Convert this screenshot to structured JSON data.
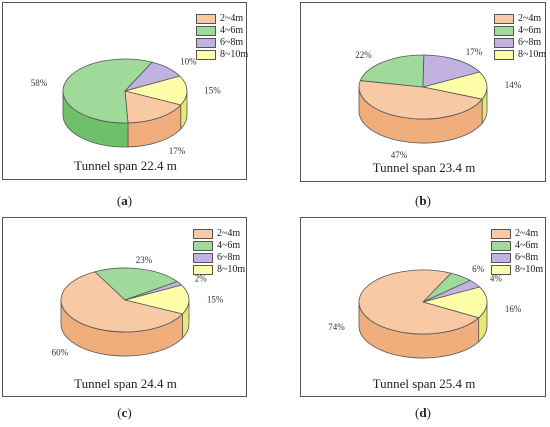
{
  "legend_labels": [
    "2~4m",
    "4~6m",
    "6~8m",
    "8~10m"
  ],
  "colors": {
    "top": [
      "#f7c9a4",
      "#9fda9a",
      "#c1b2e2",
      "#fefea8"
    ],
    "side": [
      "#efae7c",
      "#6fc06a",
      "#9c87cc",
      "#e9e971"
    ],
    "stroke": "#555555"
  },
  "chart_data": [
    {
      "type": "pie",
      "title": "Tunnel span 22.4 m",
      "panel_label": "a",
      "categories": [
        "2~4m",
        "4~6m",
        "6~8m",
        "8~10m"
      ],
      "values": [
        17,
        58,
        10,
        15
      ],
      "labels": [
        "17%",
        "58%",
        "10%",
        "15%"
      ]
    },
    {
      "type": "pie",
      "title": "Tunnel span 23.4 m",
      "panel_label": "b",
      "categories": [
        "2~4m",
        "4~6m",
        "6~8m",
        "8~10m"
      ],
      "values": [
        47,
        22,
        17,
        14
      ],
      "labels": [
        "47%",
        "22%",
        "17%",
        "14%"
      ]
    },
    {
      "type": "pie",
      "title": "Tunnel span 24.4 m",
      "panel_label": "c",
      "categories": [
        "2~4m",
        "4~6m",
        "6~8m",
        "8~10m"
      ],
      "values": [
        60,
        23,
        2,
        15
      ],
      "labels": [
        "60%",
        "23%",
        "2%",
        "15%"
      ]
    },
    {
      "type": "pie",
      "title": "Tunnel span 25.4 m",
      "panel_label": "d",
      "categories": [
        "2~4m",
        "4~6m",
        "6~8m",
        "8~10m"
      ],
      "values": [
        74,
        6,
        4,
        16
      ],
      "labels": [
        "74%",
        "6%",
        "4%",
        "16%"
      ]
    }
  ]
}
